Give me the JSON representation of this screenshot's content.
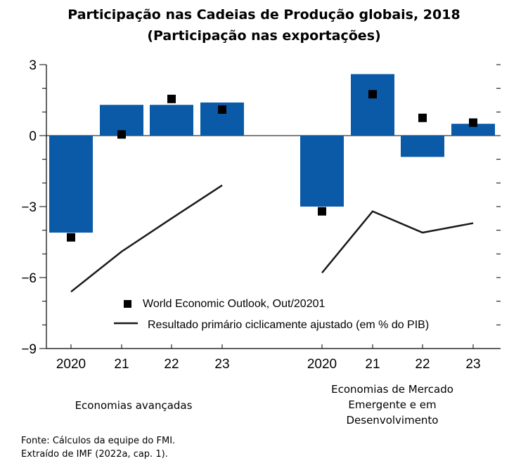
{
  "title_line1": "Participação nas Cadeias de Produção globais, 2018",
  "title_line2": "(Participação nas exportações)",
  "legend": {
    "wo_label": "World Economic Outlook, Out/20201",
    "line_label": "Resultado primário ciclicamente ajustado (em % do PIB)"
  },
  "groups": {
    "advanced": "Economias avançadas",
    "emerging_line1": "Economias de Mercado",
    "emerging_line2": "Emergente e em",
    "emerging_line3": "Desenvolvimento"
  },
  "source_line1": "Fonte: Cálculos da equipe do FMI.",
  "source_line2": "Extraído de IMF (2022a, cap. 1).",
  "colors": {
    "bar": "#0a5aa8",
    "marker": "#000000",
    "line": "#1a1a1a"
  },
  "chart_data": {
    "type": "bar",
    "ylim": [
      -9,
      3
    ],
    "yticks": [
      3,
      0,
      -3,
      -6,
      -9
    ],
    "y_tick_labels": [
      "3",
      "0",
      "−3",
      "−6",
      "−9"
    ],
    "categories": [
      "2020",
      "21",
      "22",
      "23"
    ],
    "groups": [
      {
        "name": "Economias avançadas",
        "bars": [
          -4.1,
          1.3,
          1.3,
          1.4
        ],
        "weo_markers": [
          -4.3,
          0.05,
          1.55,
          1.1
        ],
        "primary_balance": [
          -6.6,
          -4.9,
          -3.5,
          -2.1
        ]
      },
      {
        "name": "Economias de Mercado Emergente e em Desenvolvimento",
        "bars": [
          -3.0,
          2.6,
          -0.9,
          0.5
        ],
        "weo_markers": [
          -3.2,
          1.75,
          0.75,
          0.55
        ],
        "primary_balance": [
          -5.8,
          -3.2,
          -4.1,
          -3.7
        ]
      }
    ]
  }
}
